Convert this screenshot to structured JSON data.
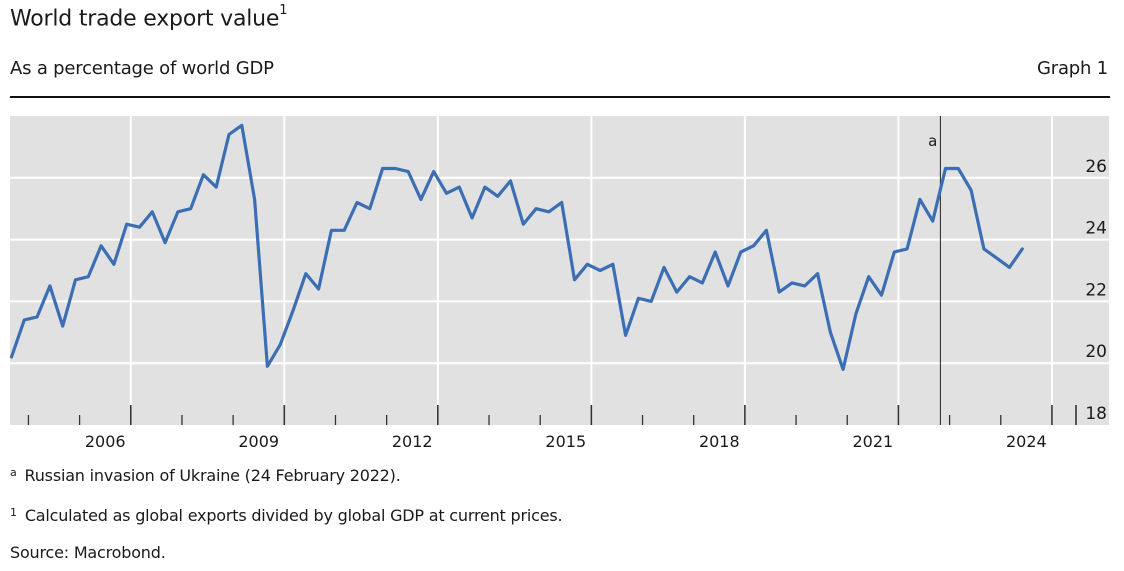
{
  "header": {
    "title": "World trade export value",
    "title_footnote": "1",
    "subtitle": "As a percentage of world GDP",
    "graph_label": "Graph 1"
  },
  "chart_data": {
    "type": "line",
    "title": "World trade export value",
    "subtitle": "As a percentage of world GDP",
    "xlabel": "",
    "ylabel": "",
    "xlim": [
      2004.0,
      2025.0
    ],
    "ylim": [
      18,
      28
    ],
    "grid": true,
    "y_axis_side": "right",
    "yticks": [
      18,
      20,
      22,
      24,
      26
    ],
    "ytick_labels": [
      "18",
      "20",
      "22",
      "24",
      "26"
    ],
    "xtick_labels": [
      "2006",
      "2009",
      "2012",
      "2015",
      "2018",
      "2021",
      "2024"
    ],
    "xtick_major_years": [
      2006,
      2009,
      2012,
      2015,
      2018,
      2021,
      2024
    ],
    "series": [
      {
        "name": "World trade export value (% of world GDP)",
        "color": "#3c6eb4",
        "x": [
          2004.0,
          2004.25,
          2004.5,
          2004.75,
          2005.0,
          2005.25,
          2005.5,
          2005.75,
          2006.0,
          2006.25,
          2006.5,
          2006.75,
          2007.0,
          2007.25,
          2007.5,
          2007.75,
          2008.0,
          2008.25,
          2008.5,
          2008.75,
          2009.0,
          2009.25,
          2009.5,
          2009.75,
          2010.0,
          2010.25,
          2010.5,
          2010.75,
          2011.0,
          2011.25,
          2011.5,
          2011.75,
          2012.0,
          2012.25,
          2012.5,
          2012.75,
          2013.0,
          2013.25,
          2013.5,
          2013.75,
          2014.0,
          2014.25,
          2014.5,
          2014.75,
          2015.0,
          2015.25,
          2015.5,
          2015.75,
          2016.0,
          2016.25,
          2016.5,
          2016.75,
          2017.0,
          2017.25,
          2017.5,
          2017.75,
          2018.0,
          2018.25,
          2018.5,
          2018.75,
          2019.0,
          2019.25,
          2019.5,
          2019.75,
          2020.0,
          2020.25,
          2020.5,
          2020.75,
          2021.0,
          2021.25,
          2021.5,
          2021.75,
          2022.0,
          2022.25,
          2022.5,
          2022.75,
          2023.0,
          2023.25,
          2023.5,
          2023.75
        ],
        "values": [
          20.2,
          21.4,
          21.5,
          22.5,
          21.2,
          22.7,
          22.8,
          23.8,
          23.2,
          24.5,
          24.4,
          24.9,
          23.9,
          24.9,
          25.0,
          26.1,
          25.7,
          27.4,
          27.7,
          25.3,
          19.9,
          20.6,
          21.7,
          22.9,
          22.4,
          24.3,
          24.3,
          25.2,
          25.0,
          26.3,
          26.3,
          26.2,
          25.3,
          26.2,
          25.5,
          25.7,
          24.7,
          25.7,
          25.4,
          25.9,
          24.5,
          25.0,
          24.9,
          25.2,
          22.7,
          23.2,
          23.0,
          23.2,
          20.9,
          22.1,
          22.0,
          23.1,
          22.3,
          22.8,
          22.6,
          23.6,
          22.5,
          23.6,
          23.8,
          24.3,
          22.3,
          22.6,
          22.5,
          22.9,
          21.0,
          19.8,
          21.6,
          22.8,
          22.2,
          23.6,
          23.7,
          25.3,
          24.6,
          26.3,
          26.3,
          25.6,
          23.7,
          23.4,
          23.1,
          23.7
        ]
      }
    ],
    "annotations": [
      {
        "type": "vline",
        "x": 2022.15,
        "label": "a",
        "note": "Russian invasion of Ukraine (24 February 2022)."
      }
    ]
  },
  "footnotes": {
    "a_marker": "a",
    "a_text": "Russian invasion of Ukraine (24 February 2022).",
    "one_marker": "1",
    "one_text": "Calculated as global exports divided by global GDP at current prices.",
    "source": "Source: Macrobond."
  }
}
